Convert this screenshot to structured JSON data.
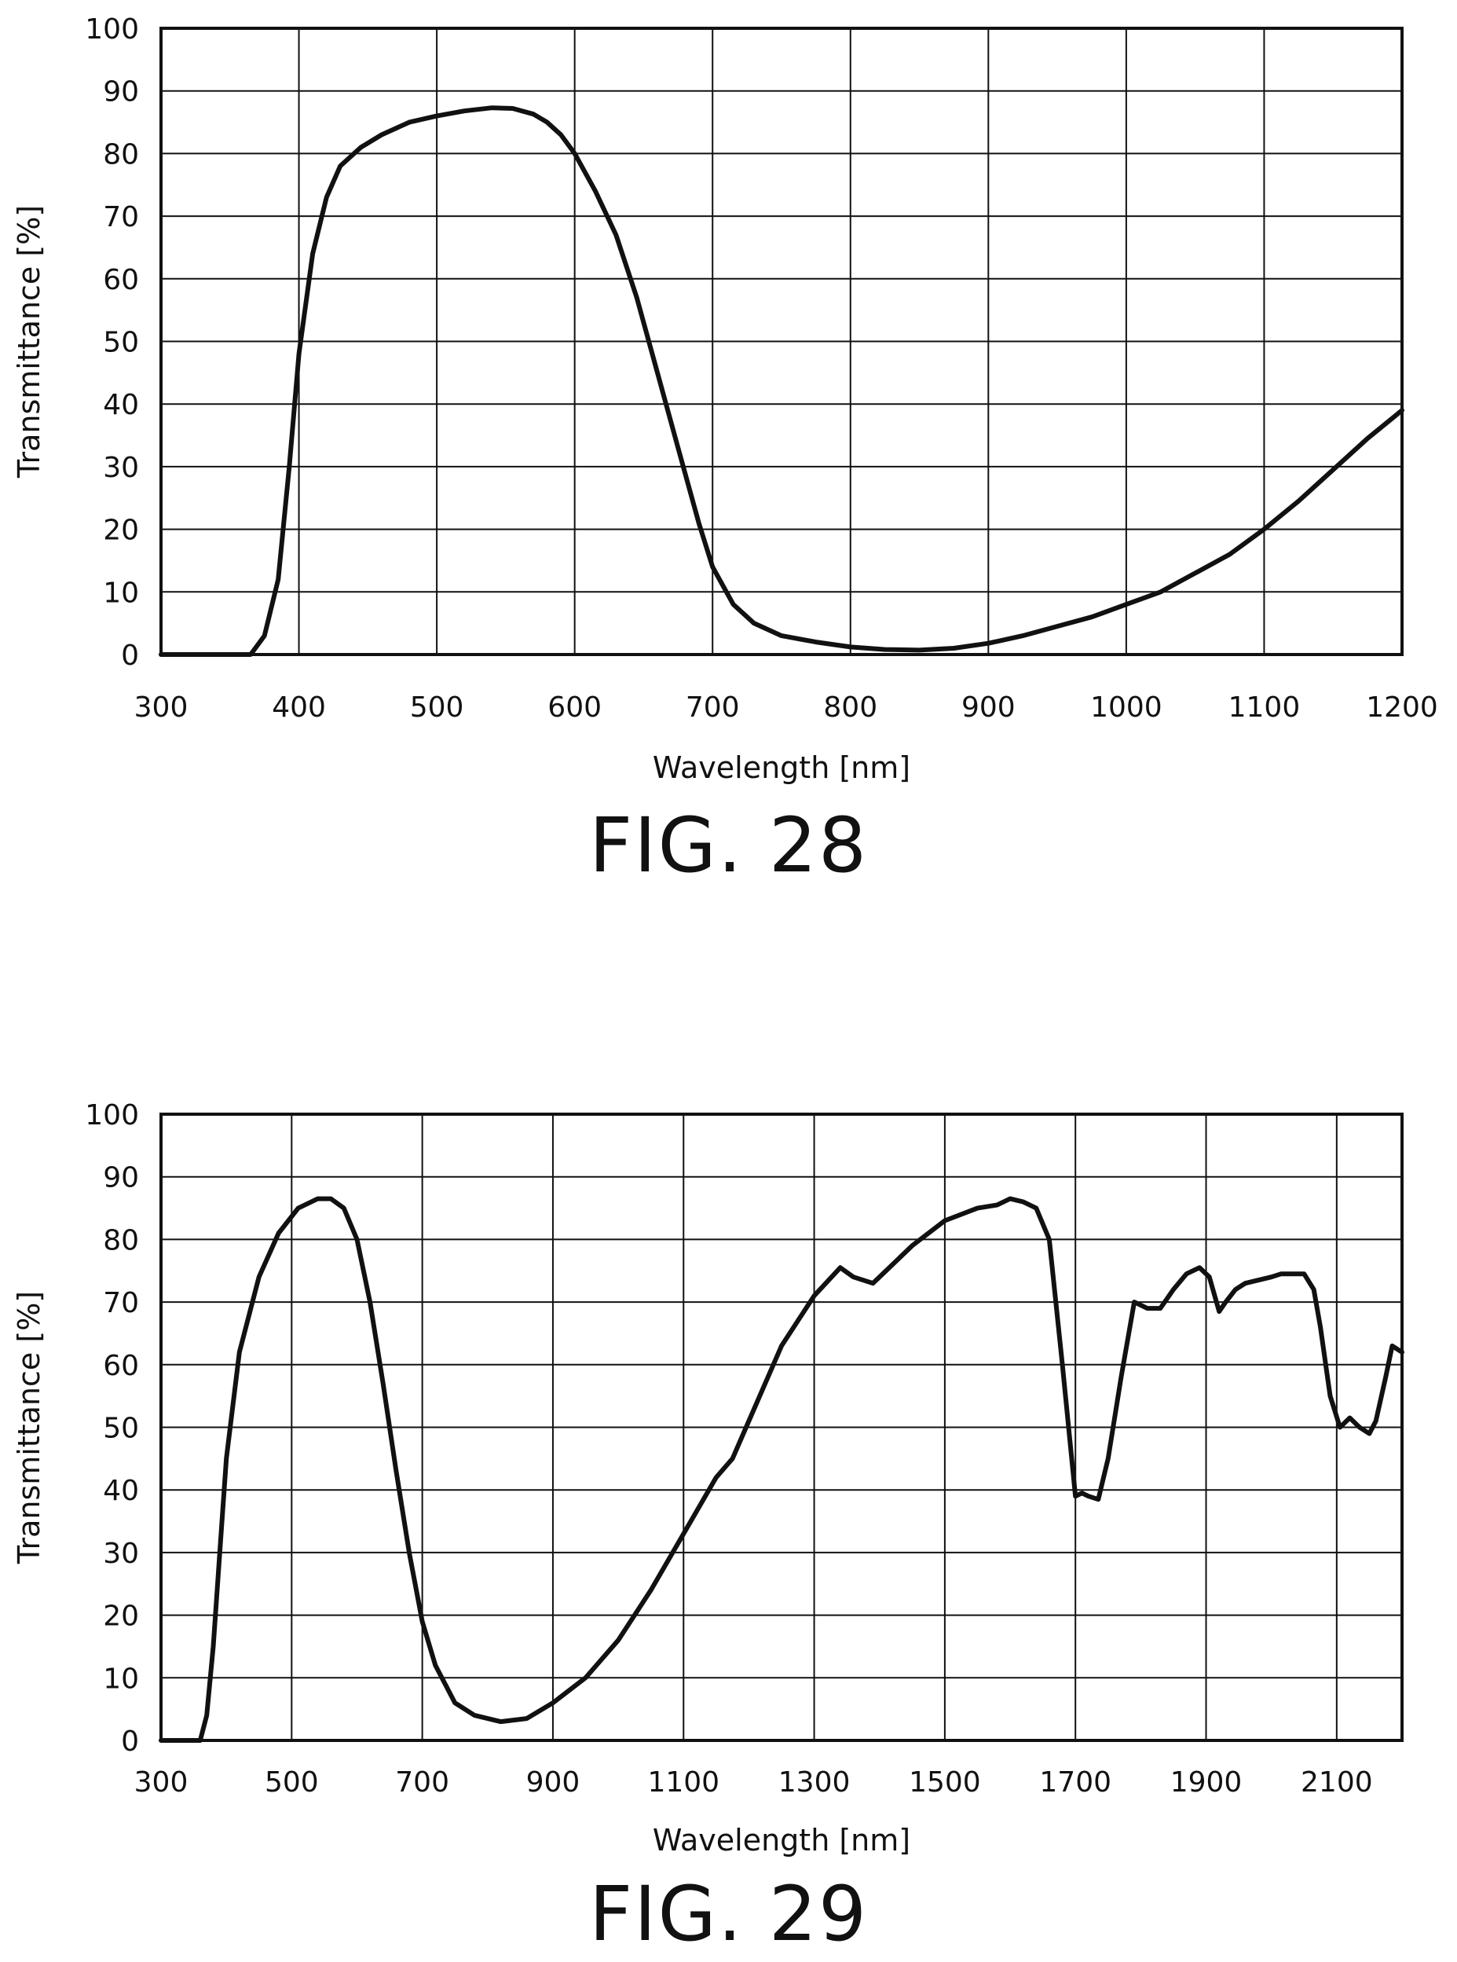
{
  "chart_data": [
    {
      "type": "line",
      "title": "",
      "caption": "FIG. 28",
      "xlabel": "Wavelength [nm]",
      "ylabel": "Transmittance [%]",
      "xlim": [
        300,
        1200
      ],
      "ylim": [
        0,
        100
      ],
      "xticks": [
        300,
        400,
        500,
        600,
        700,
        800,
        900,
        1000,
        1100,
        1200
      ],
      "yticks": [
        0,
        10,
        20,
        30,
        40,
        50,
        60,
        70,
        80,
        90,
        100
      ],
      "grid": true,
      "series": [
        {
          "x": [
            300,
            365,
            375,
            385,
            393,
            400,
            410,
            420,
            430,
            445,
            460,
            480,
            500,
            520,
            540,
            555,
            570,
            580,
            590,
            600,
            615,
            630,
            645,
            660,
            675,
            690,
            700,
            715,
            730,
            750,
            775,
            800,
            825,
            850,
            875,
            900,
            925,
            950,
            975,
            1000,
            1025,
            1050,
            1075,
            1100,
            1125,
            1150,
            1175,
            1200
          ],
          "y": [
            0,
            0,
            3,
            12,
            30,
            48,
            64,
            73,
            78,
            81,
            83,
            85,
            86,
            86.8,
            87.3,
            87.2,
            86.3,
            85,
            83,
            80,
            74,
            67,
            57,
            45,
            33,
            21,
            14,
            8,
            5,
            3,
            2,
            1.2,
            0.8,
            0.7,
            1,
            1.8,
            3,
            4.5,
            6,
            8,
            10,
            13,
            16,
            20,
            24.5,
            29.5,
            34.5,
            39
          ]
        }
      ]
    },
    {
      "type": "line",
      "title": "",
      "caption": "FIG. 29",
      "xlabel": "Wavelength [nm]",
      "ylabel": "Transmittance [%]",
      "xlim": [
        300,
        2200
      ],
      "ylim": [
        0,
        100
      ],
      "xticks": [
        300,
        500,
        700,
        900,
        1100,
        1300,
        1500,
        1700,
        1900,
        2100
      ],
      "yticks": [
        0,
        10,
        20,
        30,
        40,
        50,
        60,
        70,
        80,
        90,
        100
      ],
      "grid": true,
      "series": [
        {
          "x": [
            300,
            360,
            370,
            380,
            390,
            400,
            420,
            450,
            480,
            510,
            540,
            560,
            580,
            600,
            620,
            640,
            660,
            680,
            700,
            720,
            750,
            780,
            820,
            860,
            900,
            950,
            1000,
            1050,
            1100,
            1150,
            1175,
            1200,
            1250,
            1300,
            1340,
            1360,
            1390,
            1420,
            1450,
            1500,
            1550,
            1580,
            1600,
            1620,
            1640,
            1660,
            1680,
            1700,
            1710,
            1720,
            1735,
            1750,
            1770,
            1790,
            1810,
            1830,
            1850,
            1870,
            1890,
            1905,
            1920,
            1930,
            1945,
            1960,
            1980,
            2000,
            2015,
            2030,
            2050,
            2065,
            2075,
            2090,
            2105,
            2120,
            2135,
            2150,
            2160,
            2175,
            2185,
            2200
          ],
          "y": [
            0,
            0,
            4,
            15,
            30,
            45,
            62,
            74,
            81,
            85,
            86.5,
            86.5,
            85,
            80,
            70,
            57,
            43,
            30,
            19,
            12,
            6,
            4,
            3,
            3.5,
            6,
            10,
            16,
            24,
            33,
            42,
            45,
            51,
            63,
            71,
            75.5,
            74,
            73,
            76,
            79,
            83,
            85,
            85.5,
            86.5,
            86,
            85,
            80,
            60,
            39,
            39.5,
            39,
            38.5,
            45,
            58,
            70,
            69,
            69,
            72,
            74.5,
            75.5,
            74,
            68.5,
            70,
            72,
            73,
            73.5,
            74,
            74.5,
            74.5,
            74.5,
            72,
            66,
            55,
            50,
            51.5,
            50,
            49,
            51,
            58,
            63,
            62
          ]
        }
      ]
    }
  ]
}
